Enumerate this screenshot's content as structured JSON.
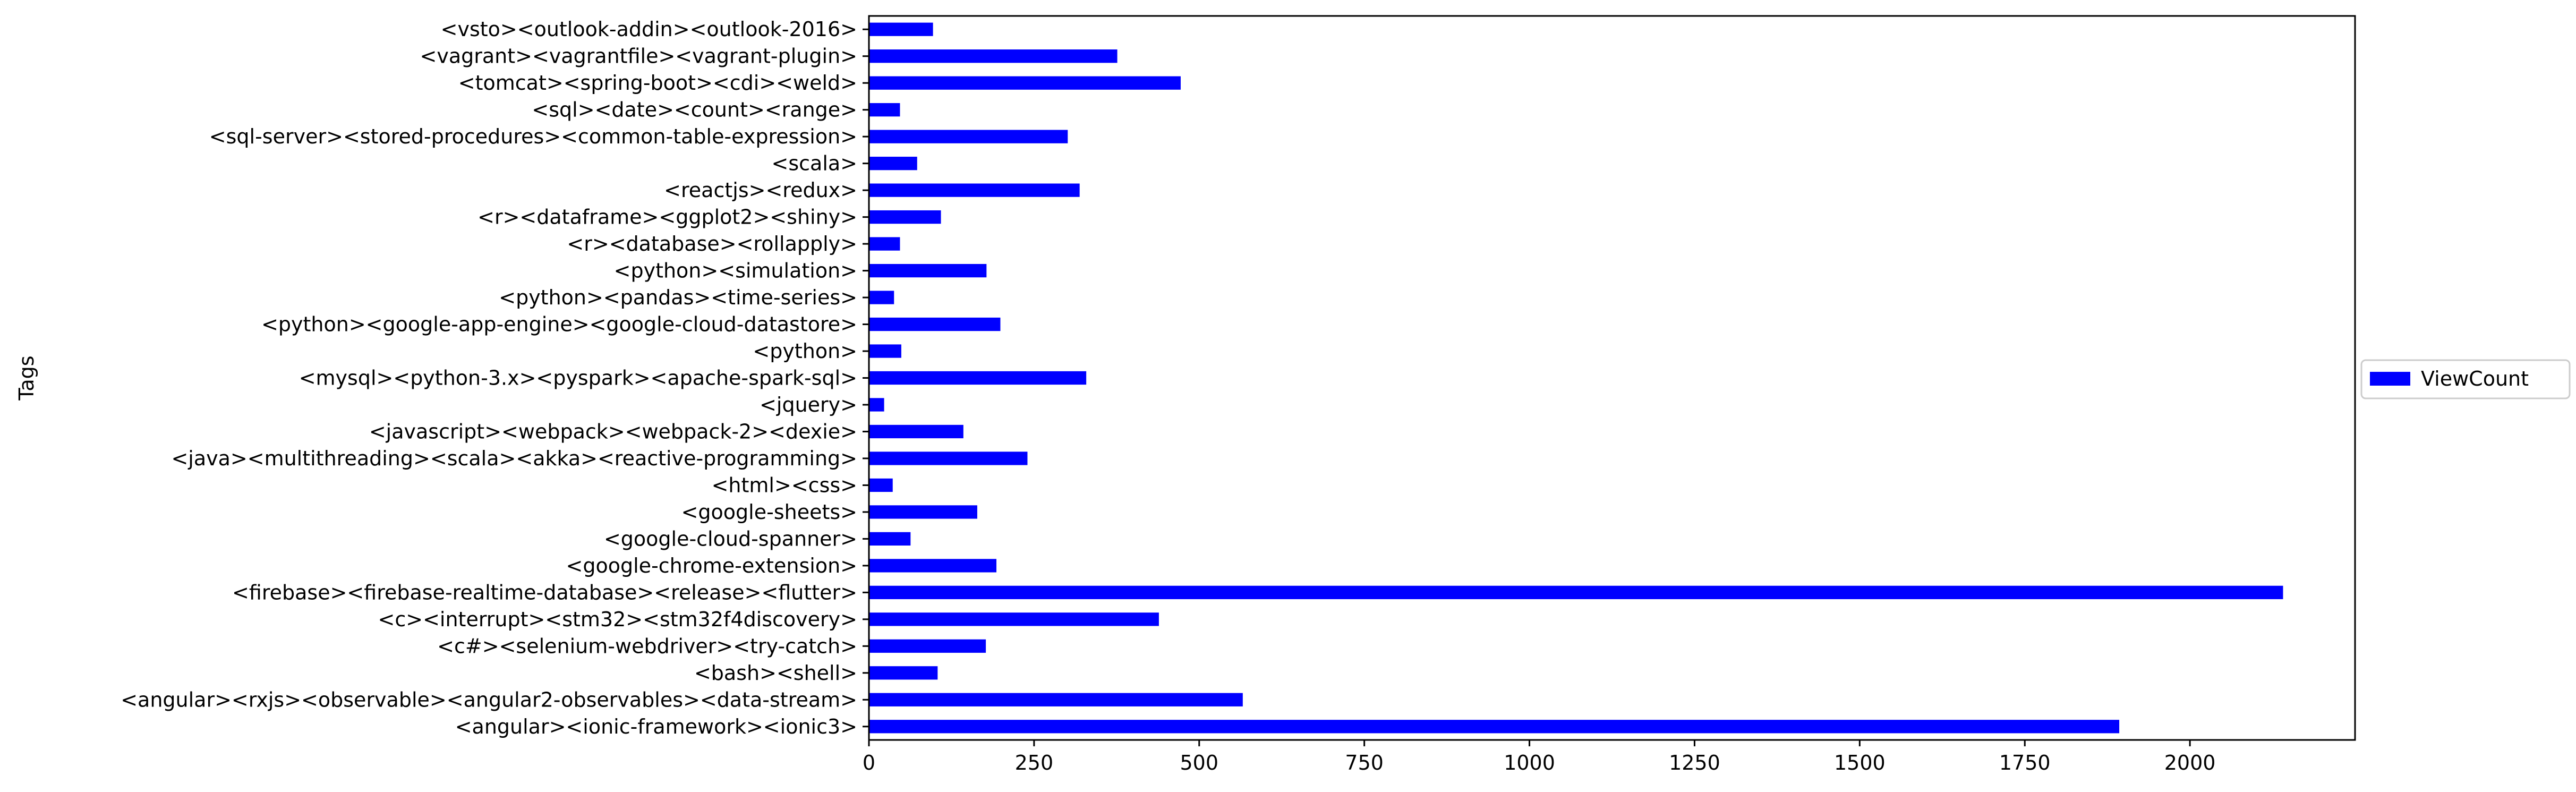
{
  "chart_data": {
    "type": "bar",
    "orientation": "horizontal",
    "ylabel": "Tags",
    "xlabel": "",
    "xlim": [
      0,
      2250
    ],
    "xticks": [
      0,
      250,
      500,
      750,
      1000,
      1250,
      1500,
      1750,
      2000
    ],
    "legend_position": "right",
    "grid": false,
    "bar_color": "#0000ff",
    "categories": [
      "<angular><ionic-framework><ionic3>",
      "<angular><rxjs><observable><angular2-observables><data-stream>",
      "<bash><shell>",
      "<c#><selenium-webdriver><try-catch>",
      "<c><interrupt><stm32><stm32f4discovery>",
      "<firebase><firebase-realtime-database><release><flutter>",
      "<google-chrome-extension>",
      "<google-cloud-spanner>",
      "<google-sheets>",
      "<html><css>",
      "<java><multithreading><scala><akka><reactive-programming>",
      "<javascript><webpack><webpack-2><dexie>",
      "<jquery>",
      "<mysql><python-3.x><pyspark><apache-spark-sql>",
      "<python>",
      "<python><google-app-engine><google-cloud-datastore>",
      "<python><pandas><time-series>",
      "<python><simulation>",
      "<r><database><rollapply>",
      "<r><dataframe><ggplot2><shiny>",
      "<reactjs><redux>",
      "<scala>",
      "<sql-server><stored-procedures><common-table-expression>",
      "<sql><date><count><range>",
      "<tomcat><spring-boot><cdi><weld>",
      "<vagrant><vagrantfile><vagrant-plugin>",
      "<vsto><outlook-addin><outlook-2016>"
    ],
    "series": [
      {
        "name": "ViewCount",
        "values": [
          1893,
          566,
          104,
          177,
          439,
          2141,
          193,
          63,
          164,
          36,
          240,
          143,
          23,
          329,
          49,
          199,
          38,
          178,
          47,
          109,
          319,
          73,
          301,
          47,
          472,
          376,
          97
        ]
      }
    ]
  }
}
